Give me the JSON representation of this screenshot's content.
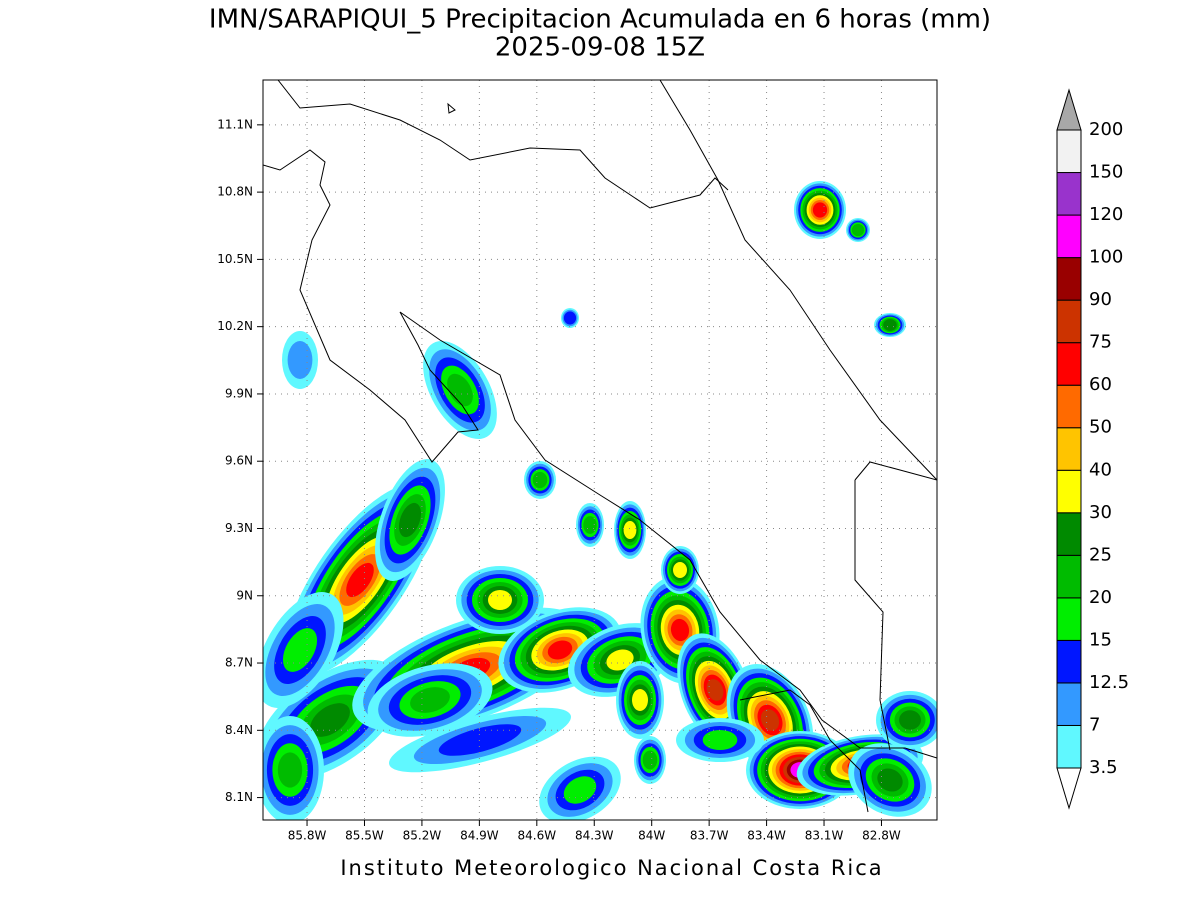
{
  "map": {
    "title": "IMN/SARAPIQUI_5 Precipitacion Acumulada en 6 horas (mm)",
    "subtitle": "2025-09-08 15Z",
    "footer": "Instituto Meteorologico Nacional Costa Rica",
    "xlim": [
      -86.03,
      -82.51
    ],
    "ylim": [
      8.0,
      11.3
    ],
    "xticks": [
      {
        "value": -85.8,
        "label": "85.8W"
      },
      {
        "value": -85.5,
        "label": "85.5W"
      },
      {
        "value": -85.2,
        "label": "85.2W"
      },
      {
        "value": -84.9,
        "label": "84.9W"
      },
      {
        "value": -84.6,
        "label": "84.6W"
      },
      {
        "value": -84.3,
        "label": "84.3W"
      },
      {
        "value": -84.0,
        "label": "84W"
      },
      {
        "value": -83.7,
        "label": "83.7W"
      },
      {
        "value": -83.4,
        "label": "83.4W"
      },
      {
        "value": -83.1,
        "label": "83.1W"
      },
      {
        "value": -82.8,
        "label": "82.8W"
      }
    ],
    "yticks": [
      {
        "value": 8.1,
        "label": "8.1N"
      },
      {
        "value": 8.4,
        "label": "8.4N"
      },
      {
        "value": 8.7,
        "label": "8.7N"
      },
      {
        "value": 9.0,
        "label": "9N"
      },
      {
        "value": 9.3,
        "label": "9.3N"
      },
      {
        "value": 9.6,
        "label": "9.6N"
      },
      {
        "value": 9.9,
        "label": "9.9N"
      },
      {
        "value": 10.2,
        "label": "10.2N"
      },
      {
        "value": 10.5,
        "label": "10.5N"
      },
      {
        "value": 10.8,
        "label": "10.8N"
      },
      {
        "value": 11.1,
        "label": "11.1N"
      }
    ],
    "grid": true,
    "colorbar": {
      "levels": [
        3.5,
        7,
        12.5,
        15,
        20,
        25,
        30,
        40,
        50,
        60,
        75,
        90,
        100,
        120,
        150,
        200
      ],
      "colors": [
        "#60f8ff",
        "#3399ff",
        "#0016ff",
        "#00ee00",
        "#00bb00",
        "#008a00",
        "#ffff00",
        "#ffc400",
        "#ff6a00",
        "#ff0000",
        "#cc3300",
        "#990000",
        "#ff00ff",
        "#9933cc",
        "#f2f2f2"
      ],
      "over_color": "#a8a8a8",
      "under_color": "#ffffff"
    }
  }
}
